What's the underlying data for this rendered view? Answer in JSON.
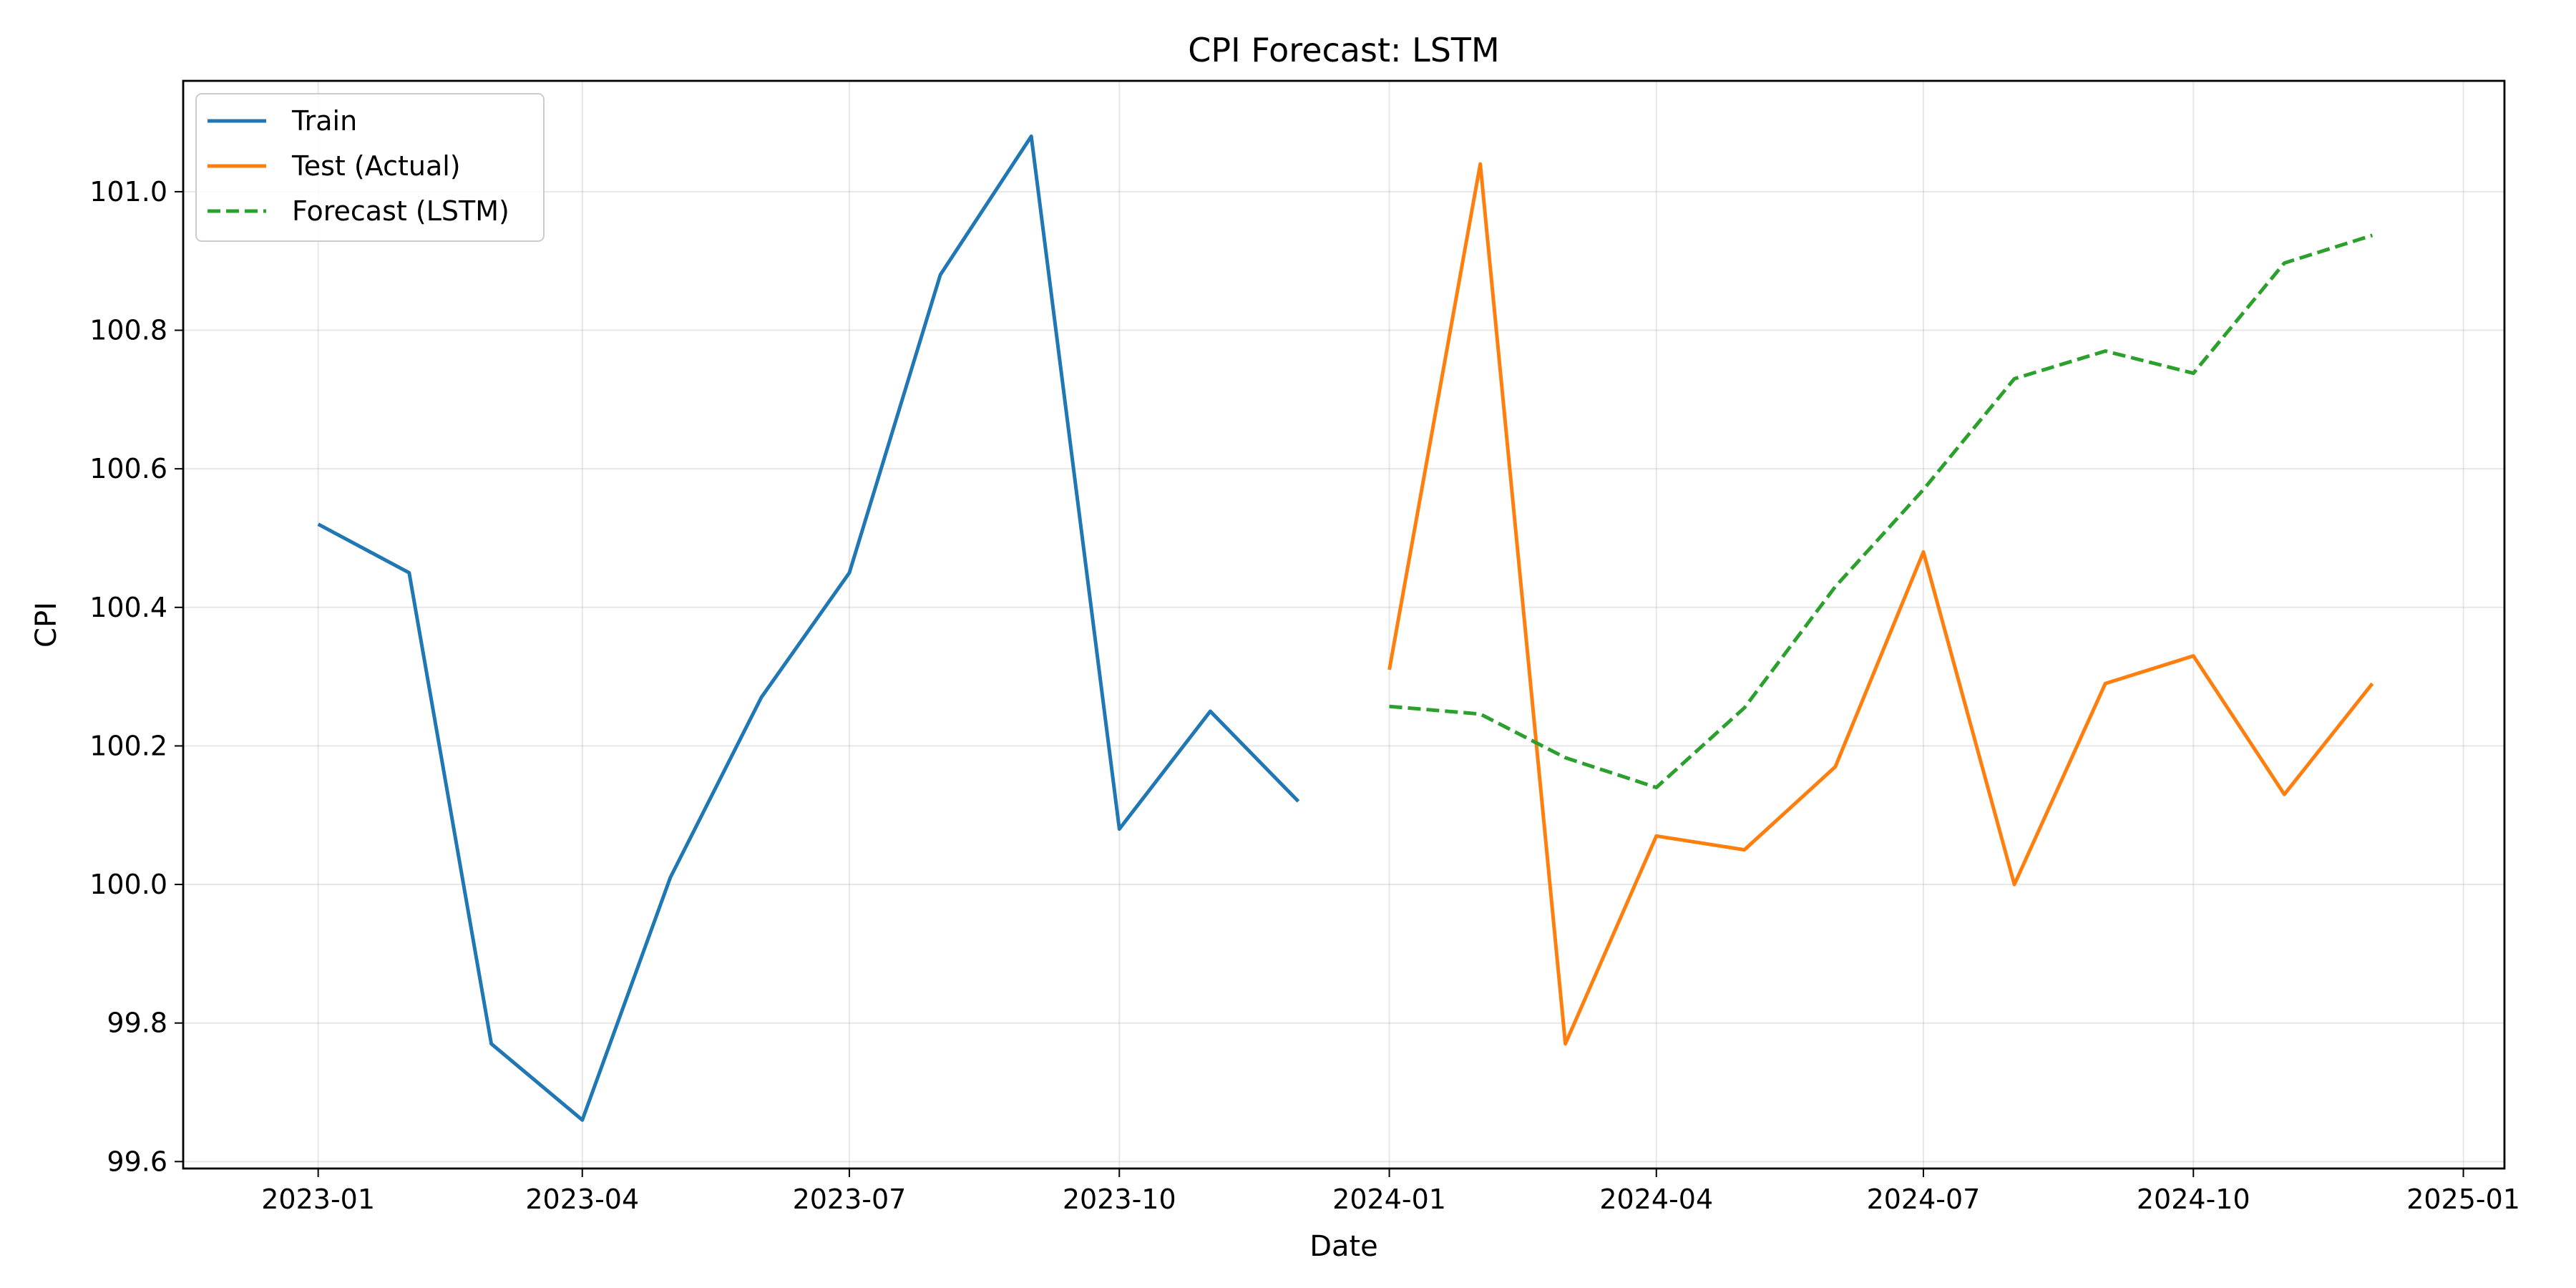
{
  "chart_data": {
    "type": "line",
    "title": "CPI Forecast: LSTM",
    "xlabel": "Date",
    "ylabel": "CPI",
    "xlim": [
      "2022-11-16",
      "2025-01-15"
    ],
    "ylim": [
      99.59,
      101.16
    ],
    "x_ticks": [
      "2023-01",
      "2023-04",
      "2023-07",
      "2023-10",
      "2024-01",
      "2024-04",
      "2024-07",
      "2024-10",
      "2025-01"
    ],
    "y_ticks": [
      "99.6",
      "99.8",
      "100.0",
      "100.2",
      "100.4",
      "100.6",
      "100.8",
      "101.0"
    ],
    "grid": true,
    "legend_position": "top-left",
    "series": [
      {
        "name": "Train",
        "color": "#1f77b4",
        "style": "solid",
        "x": [
          "2023-01-01",
          "2023-02-01",
          "2023-03-01",
          "2023-04-01",
          "2023-05-01",
          "2023-06-01",
          "2023-07-01",
          "2023-08-01",
          "2023-09-01",
          "2023-10-01",
          "2023-11-01",
          "2023-12-01"
        ],
        "values": [
          100.52,
          100.45,
          99.77,
          99.66,
          100.01,
          100.27,
          100.45,
          100.88,
          101.08,
          100.08,
          100.25,
          100.12
        ]
      },
      {
        "name": "Test (Actual)",
        "color": "#ff7f0e",
        "style": "solid",
        "x": [
          "2024-01-01",
          "2024-02-01",
          "2024-03-01",
          "2024-04-01",
          "2024-05-01",
          "2024-06-01",
          "2024-07-01",
          "2024-08-01",
          "2024-09-01",
          "2024-10-01",
          "2024-11-01",
          "2024-12-01"
        ],
        "values": [
          100.31,
          101.04,
          99.77,
          100.07,
          100.05,
          100.17,
          100.48,
          100.0,
          100.29,
          100.33,
          100.13,
          100.29
        ]
      },
      {
        "name": "Forecast (LSTM)",
        "color": "#2ca02c",
        "style": "dashed",
        "x": [
          "2024-01-01",
          "2024-02-01",
          "2024-03-01",
          "2024-04-01",
          "2024-05-01",
          "2024-06-01",
          "2024-07-01",
          "2024-08-01",
          "2024-09-01",
          "2024-10-01",
          "2024-11-01",
          "2024-12-01"
        ],
        "values": [
          100.257,
          100.246,
          100.183,
          100.14,
          100.255,
          100.43,
          100.57,
          100.73,
          100.77,
          100.738,
          100.897,
          100.937
        ]
      }
    ]
  }
}
